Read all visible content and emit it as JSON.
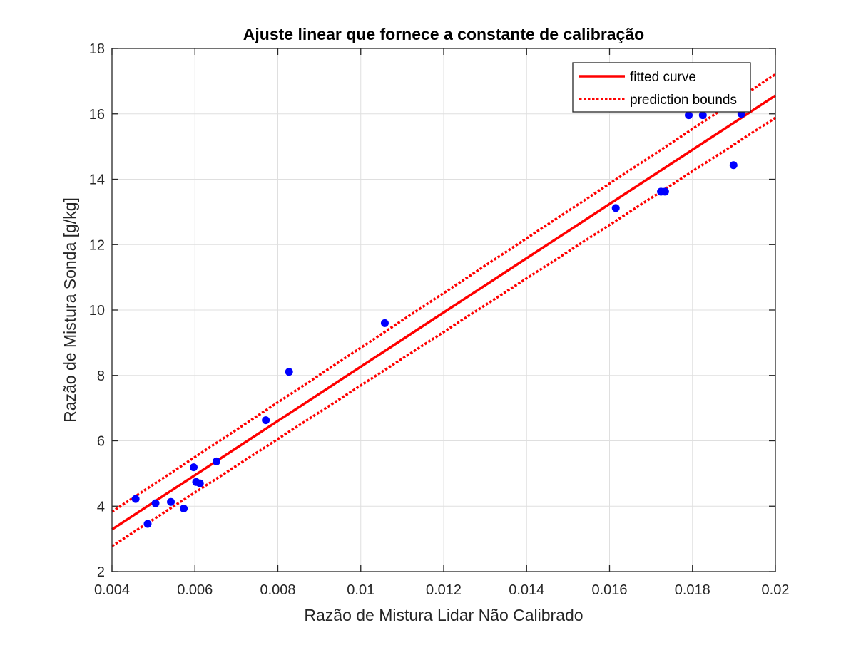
{
  "chart_data": {
    "type": "scatter",
    "title": "Ajuste linear que fornece a constante de calibração",
    "xlabel": "Razão de Mistura Lidar Não Calibrado",
    "ylabel": "Razão de Mistura Sonda [g/kg]",
    "xlim": [
      0.004,
      0.02
    ],
    "ylim": [
      2,
      18
    ],
    "xticks": [
      0.004,
      0.006,
      0.008,
      0.01,
      0.012,
      0.014,
      0.016,
      0.018,
      0.02
    ],
    "xtick_labels": [
      "0.004",
      "0.006",
      "0.008",
      "0.01",
      "0.012",
      "0.014",
      "0.016",
      "0.018",
      "0.02"
    ],
    "yticks": [
      2,
      4,
      6,
      8,
      10,
      12,
      14,
      16,
      18
    ],
    "ytick_labels": [
      "2",
      "4",
      "6",
      "8",
      "10",
      "12",
      "14",
      "16",
      "18"
    ],
    "grid": true,
    "legend_position": "top-right",
    "series": [
      {
        "kind": "points",
        "color": "#0000ff",
        "x": [
          0.00457,
          0.00486,
          0.00505,
          0.00542,
          0.00573,
          0.00597,
          0.00603,
          0.00612,
          0.00652,
          0.00771,
          0.00827,
          0.01058,
          0.01615,
          0.01724,
          0.01734,
          0.01791,
          0.01825,
          0.01899,
          0.01918
        ],
        "y": [
          4.22,
          3.46,
          4.09,
          4.13,
          3.93,
          5.19,
          4.74,
          4.7,
          5.37,
          6.63,
          8.11,
          9.6,
          13.12,
          13.62,
          13.62,
          15.96,
          15.96,
          14.43,
          16.0
        ]
      },
      {
        "kind": "line",
        "name": "fitted curve",
        "color": "#ff0000",
        "style": "solid",
        "x": [
          0.004,
          0.02
        ],
        "y": [
          3.29,
          16.56
        ]
      },
      {
        "kind": "line",
        "name": "prediction bounds",
        "color": "#ff0000",
        "style": "dotted",
        "x": [
          0.004,
          0.02
        ],
        "y": [
          3.83,
          17.21
        ]
      },
      {
        "kind": "line",
        "name": "",
        "color": "#ff0000",
        "style": "dotted",
        "x": [
          0.004,
          0.02
        ],
        "y": [
          2.78,
          15.88
        ]
      }
    ],
    "legend": [
      {
        "label": "fitted curve",
        "style": "solid",
        "color": "#ff0000"
      },
      {
        "label": "prediction bounds",
        "style": "dotted",
        "color": "#ff0000"
      }
    ]
  }
}
